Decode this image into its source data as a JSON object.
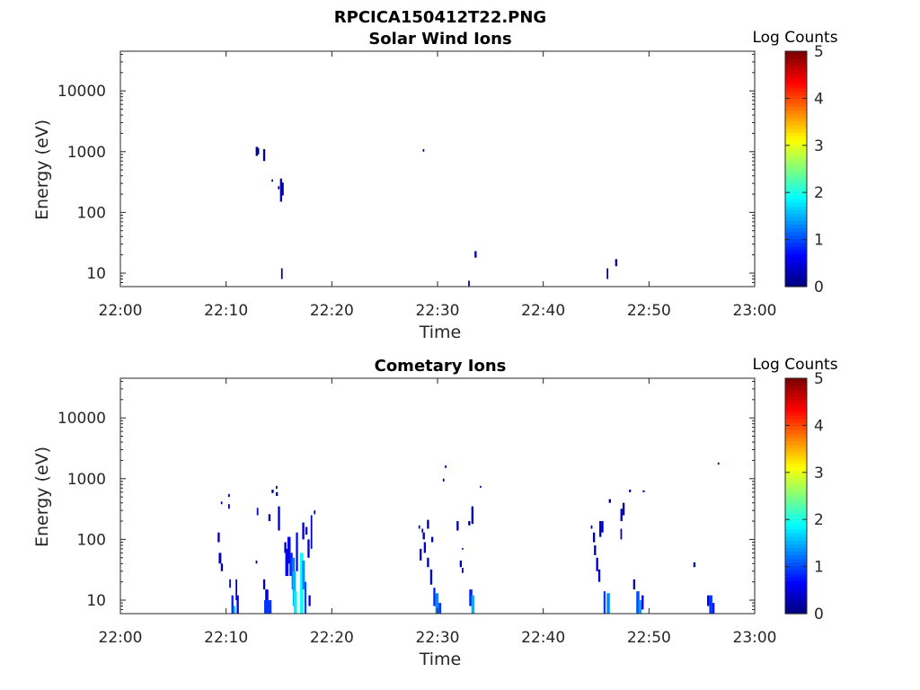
{
  "figure_title": "RPCICA150412T22.PNG",
  "chart_data": [
    {
      "type": "heatmap",
      "title": "Solar Wind Ions",
      "xlabel": "Time",
      "ylabel": "Energy (eV)",
      "x_ticks": [
        "22:00",
        "22:10",
        "22:20",
        "22:30",
        "22:40",
        "22:50",
        "23:00"
      ],
      "xlim_minutes": [
        0,
        60
      ],
      "y_scale": "log",
      "ylim": [
        6,
        45000
      ],
      "y_ticks": [
        10,
        100,
        1000,
        10000
      ],
      "y_tick_labels": [
        "10",
        "100",
        "1000",
        "10000"
      ],
      "colorbar": {
        "label": "Log Counts",
        "range": [
          0,
          5
        ],
        "ticks": [
          "0",
          "1",
          "2",
          "3",
          "4",
          "5"
        ],
        "colormap": "jet"
      },
      "cells_note": "cells: [minute_start, minute_end, energy_low_eV, energy_high_eV, log_counts]",
      "cells": [
        [
          12.8,
          13.0,
          850,
          1200,
          0.1
        ],
        [
          13.0,
          13.1,
          900,
          1150,
          0.1
        ],
        [
          13.5,
          13.7,
          700,
          1100,
          0.2
        ],
        [
          14.3,
          14.45,
          320,
          350,
          0.1
        ],
        [
          14.9,
          15.05,
          240,
          270,
          0.1
        ],
        [
          15.1,
          15.3,
          150,
          360,
          0.2
        ],
        [
          15.3,
          15.45,
          190,
          310,
          0.2
        ],
        [
          15.2,
          15.35,
          8,
          12,
          0.1
        ],
        [
          28.6,
          28.75,
          1000,
          1100,
          0.1
        ],
        [
          32.9,
          33.05,
          6,
          7.5,
          0.1
        ],
        [
          33.5,
          33.7,
          18,
          23,
          0.2
        ],
        [
          46.0,
          46.15,
          8,
          12,
          0.1
        ],
        [
          46.8,
          47.0,
          13,
          17,
          0.2
        ]
      ]
    },
    {
      "type": "heatmap",
      "title": "Cometary Ions",
      "xlabel": "Time",
      "ylabel": "Energy (eV)",
      "x_ticks": [
        "22:00",
        "22:10",
        "22:20",
        "22:30",
        "22:40",
        "22:50",
        "23:00"
      ],
      "xlim_minutes": [
        0,
        60
      ],
      "y_scale": "log",
      "ylim": [
        6,
        45000
      ],
      "y_ticks": [
        10,
        100,
        1000,
        10000
      ],
      "y_tick_labels": [
        "10",
        "100",
        "1000",
        "10000"
      ],
      "colorbar": {
        "label": "Log Counts",
        "range": [
          0,
          5
        ],
        "ticks": [
          "0",
          "1",
          "2",
          "3",
          "4",
          "5"
        ],
        "colormap": "jet"
      },
      "cells_note": "cells: [minute_start, minute_end, energy_low_eV, energy_high_eV, log_counts]",
      "cells": [
        [
          9.5,
          9.65,
          380,
          420,
          0.1
        ],
        [
          10.2,
          10.35,
          500,
          560,
          0.1
        ],
        [
          10.2,
          10.35,
          320,
          380,
          0.1
        ],
        [
          9.2,
          9.4,
          90,
          130,
          0.2
        ],
        [
          9.3,
          9.55,
          40,
          60,
          0.3
        ],
        [
          9.5,
          9.7,
          30,
          40,
          0.2
        ],
        [
          10.3,
          10.45,
          16,
          22,
          0.4
        ],
        [
          10.5,
          10.7,
          6,
          12,
          0.8
        ],
        [
          10.7,
          10.9,
          6,
          8,
          1.6
        ],
        [
          10.9,
          11.05,
          10,
          22,
          0.3
        ],
        [
          11.0,
          11.2,
          6,
          12,
          0.6
        ],
        [
          12.9,
          13.05,
          250,
          330,
          0.2
        ],
        [
          12.8,
          12.95,
          40,
          45,
          0.1
        ],
        [
          13.5,
          13.7,
          15,
          22,
          0.3
        ],
        [
          13.7,
          14.0,
          8,
          15,
          0.5
        ],
        [
          13.6,
          14.3,
          6,
          10,
          0.9
        ],
        [
          14.0,
          14.2,
          200,
          260,
          0.2
        ],
        [
          14.3,
          14.5,
          580,
          660,
          0.1
        ],
        [
          14.7,
          14.85,
          680,
          760,
          0.1
        ],
        [
          14.9,
          15.1,
          140,
          350,
          0.4
        ],
        [
          14.7,
          14.9,
          520,
          600,
          0.1
        ],
        [
          15.5,
          15.7,
          60,
          90,
          0.3
        ],
        [
          15.6,
          15.9,
          25,
          70,
          0.5
        ],
        [
          15.8,
          16.1,
          40,
          110,
          0.5
        ],
        [
          16.0,
          16.3,
          25,
          60,
          0.8
        ],
        [
          16.2,
          16.5,
          15,
          50,
          1.2
        ],
        [
          16.3,
          16.6,
          8,
          30,
          1.5
        ],
        [
          16.4,
          16.7,
          6,
          14,
          1.8
        ],
        [
          16.6,
          16.8,
          30,
          130,
          0.7
        ],
        [
          17.0,
          17.3,
          6,
          60,
          1.9
        ],
        [
          17.2,
          17.45,
          15,
          45,
          1.3
        ],
        [
          17.4,
          17.6,
          6,
          20,
          1.0
        ],
        [
          17.2,
          17.4,
          100,
          190,
          0.4
        ],
        [
          17.5,
          17.7,
          120,
          160,
          0.3
        ],
        [
          17.7,
          17.9,
          50,
          100,
          0.3
        ],
        [
          18.0,
          18.15,
          70,
          250,
          0.3
        ],
        [
          18.3,
          18.45,
          260,
          300,
          0.1
        ],
        [
          17.8,
          18.0,
          8,
          12,
          0.6
        ],
        [
          28.2,
          28.35,
          150,
          170,
          0.1
        ],
        [
          28.5,
          28.65,
          130,
          150,
          0.1
        ],
        [
          28.3,
          28.5,
          45,
          70,
          0.4
        ],
        [
          28.6,
          28.8,
          100,
          130,
          0.2
        ],
        [
          28.7,
          28.9,
          60,
          90,
          0.4
        ],
        [
          29.0,
          29.2,
          35,
          50,
          0.3
        ],
        [
          29.3,
          29.5,
          18,
          32,
          0.4
        ],
        [
          29.6,
          29.8,
          8,
          16,
          0.8
        ],
        [
          29.8,
          30.1,
          6,
          13,
          1.3
        ],
        [
          30.1,
          30.35,
          6,
          9,
          0.9
        ],
        [
          29.0,
          29.2,
          150,
          210,
          0.2
        ],
        [
          29.4,
          29.6,
          90,
          110,
          0.2
        ],
        [
          30.5,
          30.65,
          900,
          1000,
          0.1
        ],
        [
          30.7,
          30.85,
          1500,
          1650,
          0.1
        ],
        [
          31.8,
          32.0,
          140,
          200,
          0.2
        ],
        [
          32.1,
          32.3,
          35,
          45,
          0.2
        ],
        [
          32.3,
          32.45,
          28,
          34,
          0.1
        ],
        [
          32.3,
          32.45,
          68,
          72,
          0.1
        ],
        [
          32.9,
          33.1,
          170,
          200,
          0.2
        ],
        [
          33.2,
          33.4,
          180,
          350,
          0.3
        ],
        [
          33.0,
          33.3,
          8,
          15,
          0.8
        ],
        [
          33.2,
          33.5,
          6,
          12,
          1.5
        ],
        [
          34.0,
          34.15,
          710,
          760,
          0.1
        ],
        [
          44.5,
          44.65,
          150,
          170,
          0.1
        ],
        [
          44.7,
          44.9,
          90,
          130,
          0.2
        ],
        [
          44.8,
          45.0,
          55,
          80,
          0.2
        ],
        [
          45.0,
          45.2,
          30,
          50,
          0.4
        ],
        [
          45.3,
          45.5,
          110,
          200,
          0.3
        ],
        [
          45.5,
          45.7,
          130,
          200,
          0.4
        ],
        [
          45.2,
          45.4,
          20,
          32,
          0.3
        ],
        [
          45.7,
          45.9,
          6,
          14,
          0.9
        ],
        [
          46.0,
          46.3,
          6,
          13,
          1.3
        ],
        [
          46.2,
          46.4,
          400,
          460,
          0.1
        ],
        [
          47.3,
          47.5,
          200,
          320,
          0.3
        ],
        [
          47.5,
          47.7,
          250,
          400,
          0.2
        ],
        [
          47.3,
          47.45,
          100,
          150,
          0.2
        ],
        [
          48.1,
          48.3,
          600,
          660,
          0.1
        ],
        [
          48.5,
          48.7,
          15,
          22,
          0.3
        ],
        [
          48.8,
          49.1,
          6,
          14,
          1.0
        ],
        [
          49.0,
          49.3,
          6,
          10,
          1.4
        ],
        [
          49.3,
          49.5,
          7,
          12,
          0.5
        ],
        [
          49.4,
          49.6,
          600,
          640,
          0.1
        ],
        [
          54.2,
          54.4,
          35,
          42,
          0.2
        ],
        [
          55.5,
          55.7,
          8,
          12,
          0.6
        ],
        [
          55.7,
          56.0,
          6,
          12,
          0.9
        ],
        [
          56.0,
          56.2,
          6,
          9,
          0.7
        ],
        [
          56.5,
          56.65,
          1700,
          1850,
          0.1
        ]
      ]
    }
  ]
}
